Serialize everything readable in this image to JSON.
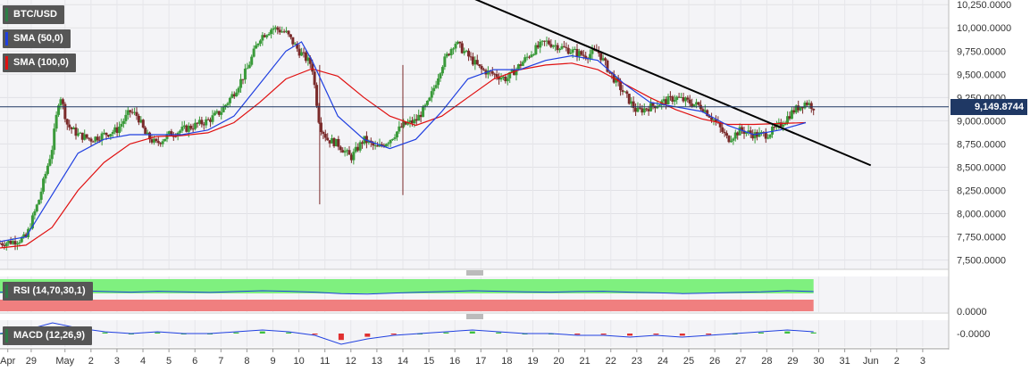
{
  "chart_data": [
    {
      "type": "candlestick",
      "symbol": "BTC/USD",
      "indicators": [
        {
          "name": "SMA (50,0)",
          "color": "#1f3fe0"
        },
        {
          "name": "SMA (100,0)",
          "color": "#e01010"
        }
      ],
      "last_price": "9,149.8744",
      "y_ticks": [
        "10,250.0000",
        "10,000.0000",
        "9,750.0000",
        "9,500.0000",
        "9,250.0000",
        "9,000.0000",
        "8,750.0000",
        "8,500.0000",
        "8,250.0000",
        "8,000.0000",
        "7,750.0000",
        "7,500.0000"
      ],
      "ylim": [
        7400,
        10300
      ],
      "price_path": [
        [
          0,
          7680
        ],
        [
          0.5,
          7700
        ],
        [
          1,
          7740
        ],
        [
          1.5,
          8150
        ],
        [
          2,
          8700
        ],
        [
          2.3,
          9300
        ],
        [
          2.6,
          8950
        ],
        [
          3,
          8850
        ],
        [
          3.5,
          8800
        ],
        [
          4,
          8850
        ],
        [
          4.5,
          8900
        ],
        [
          5,
          9100
        ],
        [
          5.3,
          9050
        ],
        [
          5.6,
          8850
        ],
        [
          6,
          8750
        ],
        [
          6.5,
          8850
        ],
        [
          7,
          8900
        ],
        [
          7.5,
          8950
        ],
        [
          8,
          9000
        ],
        [
          8.5,
          9100
        ],
        [
          9,
          9300
        ],
        [
          9.5,
          9550
        ],
        [
          10,
          9900
        ],
        [
          10.5,
          10000
        ],
        [
          11,
          9950
        ],
        [
          11.5,
          9750
        ],
        [
          12,
          9600
        ],
        [
          12.3,
          8950
        ],
        [
          12.6,
          8800
        ],
        [
          13,
          8750
        ],
        [
          13.5,
          8600
        ],
        [
          14,
          8800
        ],
        [
          14.5,
          8700
        ],
        [
          15,
          8800
        ],
        [
          15.5,
          8950
        ],
        [
          16,
          9000
        ],
        [
          16.5,
          9200
        ],
        [
          17,
          9600
        ],
        [
          17.5,
          9850
        ],
        [
          18,
          9700
        ],
        [
          18.5,
          9550
        ],
        [
          19,
          9500
        ],
        [
          19.5,
          9450
        ],
        [
          20,
          9600
        ],
        [
          20.5,
          9750
        ],
        [
          21,
          9850
        ],
        [
          21.5,
          9800
        ],
        [
          22,
          9750
        ],
        [
          22.5,
          9700
        ],
        [
          23,
          9750
        ],
        [
          23.5,
          9500
        ],
        [
          24,
          9300
        ],
        [
          24.5,
          9100
        ],
        [
          25,
          9150
        ],
        [
          25.5,
          9200
        ],
        [
          26,
          9250
        ],
        [
          26.5,
          9200
        ],
        [
          27,
          9150
        ],
        [
          27.5,
          9000
        ],
        [
          28,
          8800
        ],
        [
          28.5,
          8900
        ],
        [
          29,
          8850
        ],
        [
          29.5,
          8850
        ],
        [
          30,
          8950
        ],
        [
          30.5,
          9100
        ],
        [
          31,
          9200
        ],
        [
          31.3,
          9150
        ]
      ],
      "sma50_path": [
        [
          0,
          7700
        ],
        [
          1,
          7750
        ],
        [
          2,
          8200
        ],
        [
          3,
          8650
        ],
        [
          4,
          8800
        ],
        [
          5,
          8850
        ],
        [
          6,
          8850
        ],
        [
          7,
          8850
        ],
        [
          8,
          8900
        ],
        [
          9,
          9050
        ],
        [
          10,
          9400
        ],
        [
          11,
          9750
        ],
        [
          11.6,
          9850
        ],
        [
          12,
          9650
        ],
        [
          13,
          9050
        ],
        [
          14,
          8800
        ],
        [
          15,
          8700
        ],
        [
          16,
          8800
        ],
        [
          17,
          9100
        ],
        [
          18,
          9450
        ],
        [
          19,
          9550
        ],
        [
          20,
          9550
        ],
        [
          21,
          9650
        ],
        [
          22,
          9700
        ],
        [
          23,
          9650
        ],
        [
          24,
          9400
        ],
        [
          25,
          9200
        ],
        [
          26,
          9150
        ],
        [
          27,
          9100
        ],
        [
          28,
          8950
        ],
        [
          29,
          8850
        ],
        [
          30,
          8900
        ],
        [
          31,
          8980
        ]
      ],
      "sma100_path": [
        [
          0,
          7630
        ],
        [
          1,
          7660
        ],
        [
          2,
          7850
        ],
        [
          3,
          8250
        ],
        [
          4,
          8550
        ],
        [
          5,
          8750
        ],
        [
          6,
          8830
        ],
        [
          7,
          8840
        ],
        [
          8,
          8870
        ],
        [
          9,
          8980
        ],
        [
          10,
          9200
        ],
        [
          11,
          9450
        ],
        [
          12,
          9560
        ],
        [
          13,
          9480
        ],
        [
          14,
          9250
        ],
        [
          15,
          9050
        ],
        [
          16,
          8950
        ],
        [
          17,
          9050
        ],
        [
          18,
          9250
        ],
        [
          19,
          9450
        ],
        [
          20,
          9550
        ],
        [
          21,
          9600
        ],
        [
          22,
          9620
        ],
        [
          23,
          9550
        ],
        [
          24,
          9400
        ],
        [
          25,
          9250
        ],
        [
          26,
          9120
        ],
        [
          27,
          9020
        ],
        [
          28,
          8960
        ],
        [
          29,
          8960
        ],
        [
          30,
          8970
        ],
        [
          31,
          8980
        ]
      ],
      "trendline": {
        "start": [
          17.5,
          10400
        ],
        "end": [
          33.5,
          8520
        ]
      },
      "x_ticks": [
        "Apr",
        "29",
        "May",
        "2",
        "3",
        "4",
        "5",
        "6",
        "7",
        "8",
        "9",
        "10",
        "11",
        "12",
        "13",
        "14",
        "15",
        "16",
        "17",
        "18",
        "19",
        "20",
        "21",
        "22",
        "23",
        "24",
        "25",
        "26",
        "27",
        "28",
        "29",
        "30",
        "31",
        "Jun",
        "2",
        "3"
      ],
      "x_tick_positions": [
        0.3,
        1.2,
        2.5,
        3.5,
        4.5,
        5.5,
        6.5,
        7.5,
        8.5,
        9.5,
        10.5,
        11.5,
        12.5,
        13.5,
        14.5,
        15.5,
        16.5,
        17.5,
        18.5,
        19.5,
        20.5,
        21.5,
        22.5,
        23.5,
        24.5,
        25.5,
        26.5,
        27.5,
        28.5,
        29.5,
        30.5,
        31.5,
        32.5,
        33.5,
        34.5,
        35.5
      ],
      "x_range": [
        0,
        36.5
      ]
    },
    {
      "type": "line",
      "name": "RSI (14,70,30,1)",
      "overbought_color": "#7ff07f",
      "oversold_color": "#f07f7f",
      "values": [
        55,
        58,
        56,
        60,
        57,
        55,
        58,
        56,
        54,
        57,
        60,
        58,
        55,
        50,
        48,
        52,
        55,
        57,
        60,
        58,
        56,
        55,
        57,
        58,
        55,
        53,
        50,
        52,
        54,
        56,
        60,
        57
      ]
    },
    {
      "type": "line",
      "name": "MACD (12,26,9)",
      "y_tick": "0.0000",
      "y_tick2": "-0.0000",
      "values": [
        0,
        2,
        6,
        3,
        1,
        0,
        1,
        0,
        0,
        1,
        2,
        1,
        -1,
        -6,
        -3,
        -1,
        0,
        1,
        2,
        1,
        0,
        0,
        -1,
        -1,
        -2,
        -1,
        -2,
        -1,
        0,
        1,
        2,
        1
      ]
    }
  ]
}
